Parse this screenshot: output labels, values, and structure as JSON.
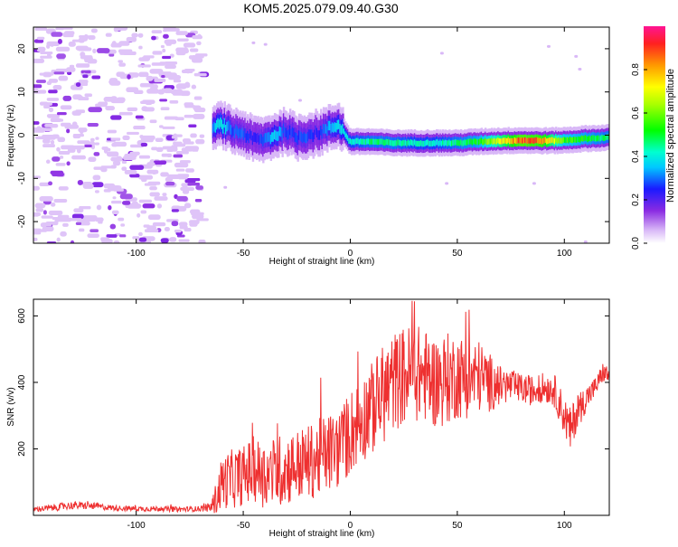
{
  "title": "KOM5.2025.079.09.40.G30",
  "colors": {
    "snr_line": "#ee3030",
    "axis": "#000000",
    "spectrogram_low": "#cfa8f5",
    "spectrogram_mid": "#7a1de8",
    "spectrogram_cyan": "#00e5f0",
    "spectrogram_green": "#22dd22",
    "spectrogram_high": "#ff2a2a"
  },
  "chart_data": [
    {
      "type": "heatmap",
      "title": "KOM5.2025.079.09.40.G30",
      "xlabel": "Height of straight line (km)",
      "ylabel": "Frequency (Hz)",
      "xlim": [
        -148,
        121
      ],
      "ylim": [
        -25,
        25
      ],
      "x_ticks": [
        -100,
        -50,
        0,
        50,
        100
      ],
      "y_ticks": [
        -20,
        -10,
        0,
        10,
        20
      ],
      "grid": false,
      "colorbar": {
        "label": "Normalized spectral amplitude",
        "range": [
          0,
          1
        ],
        "ticks": [
          0.0,
          0.2,
          0.4,
          0.6,
          0.8
        ]
      },
      "signal_ridge": {
        "description_of_trace": "dominant frequency vs height",
        "x": [
          -64,
          -60,
          -55,
          -50,
          -45,
          -40,
          -35,
          -30,
          -25,
          -20,
          -15,
          -10,
          -5,
          0,
          10,
          20,
          30,
          40,
          50,
          60,
          70,
          80,
          90,
          100,
          110,
          120
        ],
        "freq": [
          1.5,
          2.5,
          1.0,
          0.5,
          -1.0,
          -1.0,
          0.0,
          1.0,
          -0.5,
          0.0,
          0.5,
          1.5,
          2.5,
          -1.5,
          -1.5,
          -1.8,
          -1.8,
          -1.8,
          -1.8,
          -1.5,
          -1.3,
          -1.2,
          -1.3,
          -1.2,
          -0.8,
          -0.6
        ],
        "amplitude": [
          0.35,
          0.45,
          0.3,
          0.3,
          0.25,
          0.3,
          0.4,
          0.3,
          0.3,
          0.3,
          0.25,
          0.35,
          0.4,
          0.45,
          0.5,
          0.5,
          0.45,
          0.45,
          0.5,
          0.55,
          0.75,
          0.95,
          0.9,
          0.6,
          0.55,
          0.5
        ]
      }
    },
    {
      "type": "line",
      "xlabel": "Height of straight line (km)",
      "ylabel": "SNR (v/v)",
      "xlim": [
        -148,
        121
      ],
      "ylim": [
        0,
        650
      ],
      "x_ticks": [
        -100,
        -50,
        0,
        50,
        100
      ],
      "y_ticks": [
        200,
        400,
        600
      ],
      "grid": false,
      "series": [
        {
          "x": [
            -148,
            -140,
            -130,
            -120,
            -110,
            -100,
            -90,
            -80,
            -70,
            -65,
            -62,
            -60,
            -55,
            -50,
            -45,
            -40,
            -35,
            -30,
            -25,
            -20,
            -15,
            -10,
            -5,
            0,
            5,
            10,
            15,
            20,
            25,
            30,
            35,
            40,
            45,
            50,
            55,
            60,
            65,
            70,
            75,
            80,
            85,
            90,
            95,
            100,
            103,
            105,
            110,
            115,
            118,
            121
          ],
          "y": [
            18,
            22,
            30,
            28,
            22,
            20,
            20,
            18,
            20,
            25,
            60,
            100,
            110,
            120,
            140,
            120,
            130,
            140,
            150,
            160,
            170,
            190,
            200,
            250,
            290,
            320,
            360,
            400,
            420,
            430,
            420,
            400,
            410,
            420,
            410,
            420,
            400,
            390,
            390,
            380,
            375,
            385,
            380,
            300,
            250,
            300,
            350,
            390,
            430,
            420
          ],
          "noise_amp": [
            8,
            10,
            12,
            10,
            8,
            8,
            8,
            8,
            8,
            15,
            60,
            80,
            90,
            90,
            100,
            100,
            110,
            110,
            110,
            110,
            120,
            120,
            120,
            130,
            130,
            140,
            150,
            150,
            150,
            150,
            140,
            140,
            140,
            130,
            120,
            110,
            90,
            60,
            50,
            45,
            45,
            45,
            50,
            60,
            70,
            60,
            40,
            30,
            30,
            30
          ]
        }
      ]
    }
  ]
}
